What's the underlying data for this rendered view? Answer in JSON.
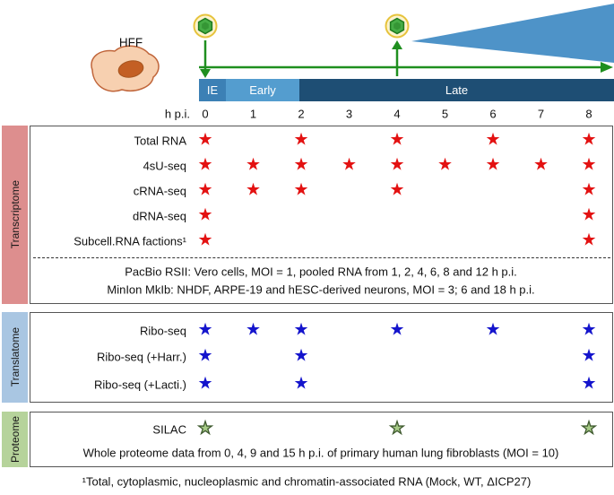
{
  "header": {
    "cell_label": "HFF",
    "hpi_label": "h p.i.",
    "ticks": [
      "0",
      "1",
      "2",
      "3",
      "4",
      "5",
      "6",
      "7",
      "8"
    ],
    "phases": [
      {
        "label": "IE",
        "color": "#3c80b5"
      },
      {
        "label": "Early",
        "color": "#549dcf"
      },
      {
        "label": "Late",
        "color": "#1e4e74"
      }
    ],
    "icons": {
      "virus_icon": "green hexagonal virion in yellow halo",
      "wedge_color": "#4e93c8",
      "arrow_color": "#1f8f1f"
    }
  },
  "sections": [
    {
      "id": "transcriptome",
      "label": "Transcriptome",
      "strip_color": "#dd8e8e",
      "star_color": "#e31111",
      "rows": [
        {
          "label": "Total RNA",
          "stars": [
            0,
            2,
            4,
            6,
            8
          ]
        },
        {
          "label": "4sU-seq",
          "stars": [
            0,
            1,
            2,
            3,
            4,
            5,
            6,
            7,
            8
          ]
        },
        {
          "label": "cRNA-seq",
          "stars": [
            0,
            1,
            2,
            4,
            8
          ]
        },
        {
          "label": "dRNA-seq",
          "stars": [
            0,
            8
          ]
        },
        {
          "label": "Subcell.RNA factions¹",
          "stars": [
            0,
            8
          ]
        }
      ],
      "notes": [
        "PacBio RSII: Vero cells, MOI = 1, pooled RNA from 1, 2, 4, 6, 8 and 12 h p.i.",
        "MinIon MkIb: NHDF, ARPE-19 and hESC-derived neurons, MOI = 3; 6 and 18 h p.i."
      ]
    },
    {
      "id": "translatome",
      "label": "Translatome",
      "strip_color": "#a9c6e2",
      "star_color": "#1414cc",
      "rows": [
        {
          "label": "Ribo-seq",
          "stars": [
            0,
            1,
            2,
            4,
            6,
            8
          ]
        },
        {
          "label": "Ribo-seq (+Harr.)",
          "stars": [
            0,
            2,
            8
          ]
        },
        {
          "label": "Ribo-seq (+Lacti.)",
          "stars": [
            0,
            2,
            8
          ]
        }
      ],
      "notes": []
    },
    {
      "id": "proteome",
      "label": "Proteome",
      "strip_color": "#b6d39b",
      "star_color": "#a6ca86",
      "star_stroke": "#3f5a2f",
      "rows": [
        {
          "label": "SILAC",
          "stars": [
            0,
            4,
            8
          ]
        }
      ],
      "notes": [
        "Whole proteome data from 0, 4, 9 and 15 h p.i. of primary human lung fibroblasts (MOI = 10)"
      ]
    }
  ],
  "footnote": "¹Total, cytoplasmic, nucleoplasmic and chromatin-associated RNA (Mock, WT, ΔICP27)"
}
